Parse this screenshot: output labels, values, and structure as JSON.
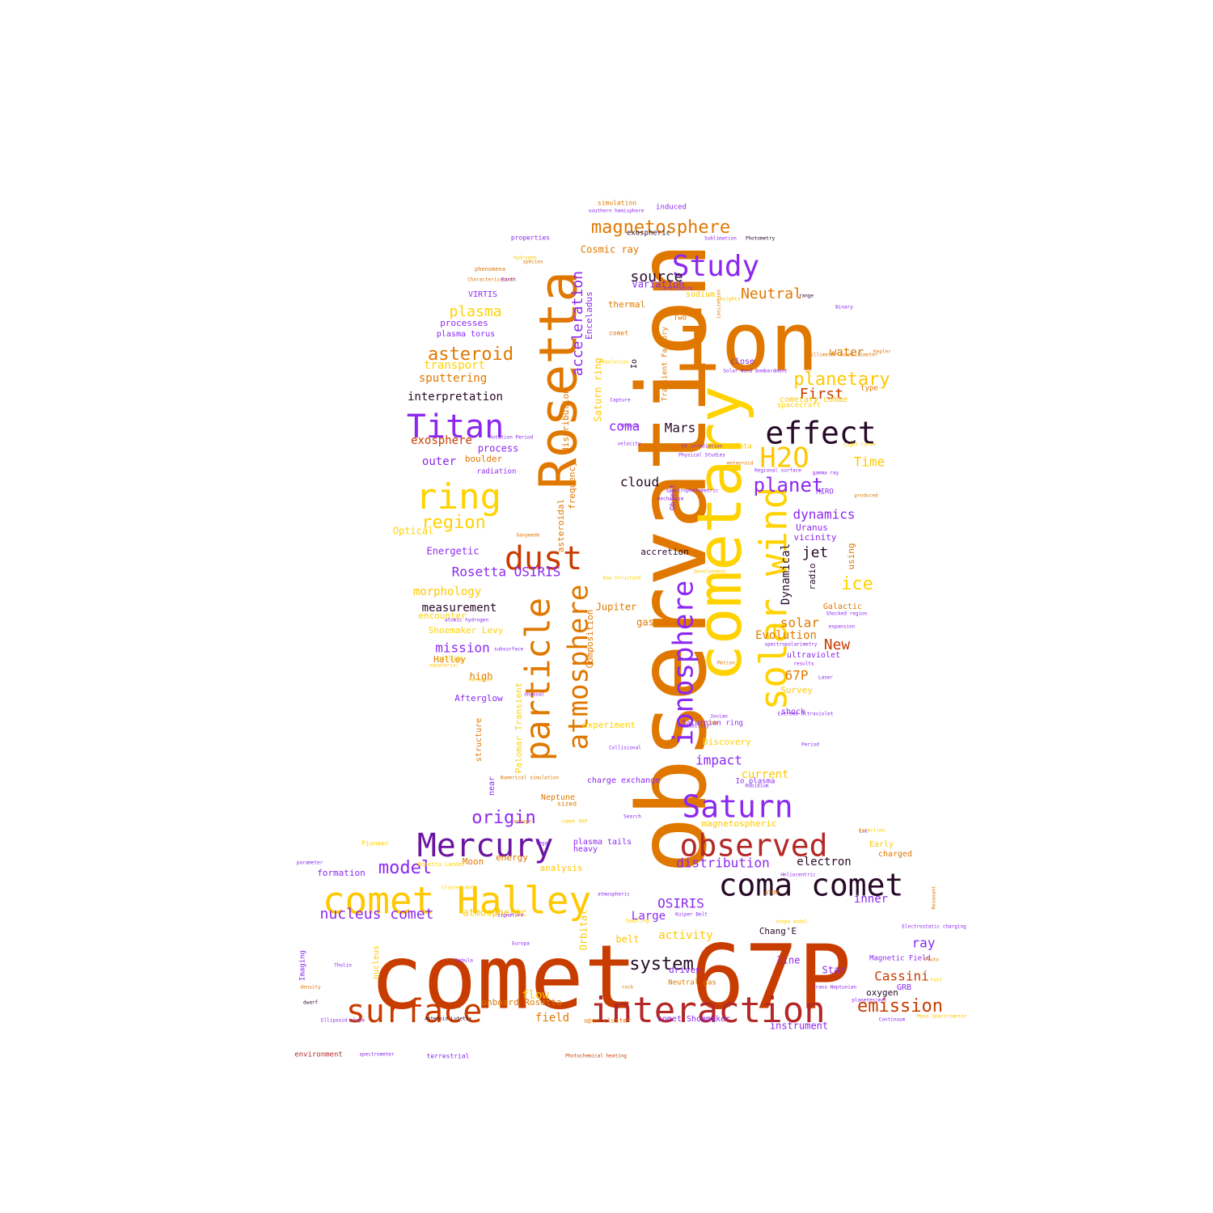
{
  "words": [
    {
      "text": "comet 67P",
      "color": "#c83c00"
    },
    {
      "text": "observation",
      "color": "#e07800"
    },
    {
      "text": "ion",
      "color": "#e07800"
    },
    {
      "text": "cometary",
      "color": "#ffd200"
    },
    {
      "text": "Rosetta",
      "color": "#e07800"
    },
    {
      "text": "interaction",
      "color": "#b42828"
    },
    {
      "text": "comet Halley",
      "color": "#ffc800"
    },
    {
      "text": "Mercury",
      "color": "#6a14a0"
    },
    {
      "text": "observed",
      "color": "#b42828"
    },
    {
      "text": "Saturn",
      "color": "#8c28f0"
    },
    {
      "text": "coma comet",
      "color": "#280a28"
    },
    {
      "text": "surface",
      "color": "#c83c00"
    },
    {
      "text": "effect",
      "color": "#280a28"
    },
    {
      "text": "solar wind",
      "color": "#ffd200"
    },
    {
      "text": "ring",
      "color": "#ffd200"
    },
    {
      "text": "particle",
      "color": "#e07800"
    },
    {
      "text": "atmosphere",
      "color": "#e07800"
    },
    {
      "text": "ionosphere",
      "color": "#8c28f0"
    },
    {
      "text": "dust",
      "color": "#c83c00"
    },
    {
      "text": "Titan",
      "color": "#8c28f0"
    },
    {
      "text": "Study",
      "color": "#8c28f0"
    },
    {
      "text": "H2O",
      "color": "#ffc800"
    },
    {
      "text": "magnetosphere",
      "color": "#e07800"
    },
    {
      "text": "planetary",
      "color": "#ffc800"
    },
    {
      "text": "asteroid",
      "color": "#e07800"
    },
    {
      "text": "planet",
      "color": "#8c28f0"
    },
    {
      "text": "region",
      "color": "#ffd200"
    },
    {
      "text": "origin",
      "color": "#8c28f0"
    },
    {
      "text": "emission",
      "color": "#c83c00"
    },
    {
      "text": "nucleus comet",
      "color": "#8c28f0"
    },
    {
      "text": "model",
      "color": "#8c28f0"
    },
    {
      "text": "system",
      "color": "#280a28"
    },
    {
      "text": "Neutral",
      "color": "#e07800"
    },
    {
      "text": "dynamics",
      "color": "#8c28f0"
    },
    {
      "text": "ice",
      "color": "#ffd200"
    },
    {
      "text": "First",
      "color": "#c83c00"
    },
    {
      "text": "source",
      "color": "#280a28"
    },
    {
      "text": "plasma",
      "color": "#ffd200"
    },
    {
      "text": "acceleration",
      "color": "#8c28f0"
    },
    {
      "text": "Rosetta OSIRIS",
      "color": "#8c28f0"
    },
    {
      "text": "distribution",
      "color": "#8c28f0"
    },
    {
      "text": "impact",
      "color": "#8c28f0"
    },
    {
      "text": "Cassini",
      "color": "#c83c00"
    },
    {
      "text": "OSIRIS",
      "color": "#8c28f0"
    },
    {
      "text": "electron",
      "color": "#280a28"
    },
    {
      "text": "mission",
      "color": "#8c28f0"
    },
    {
      "text": "coma",
      "color": "#8c28f0"
    },
    {
      "text": "Mars",
      "color": "#280a28"
    },
    {
      "text": "cloud",
      "color": "#280a28"
    },
    {
      "text": "jet",
      "color": "#280a28"
    },
    {
      "text": "water",
      "color": "#e07800"
    },
    {
      "text": "Time",
      "color": "#ffc800"
    },
    {
      "text": "sputtering",
      "color": "#e07800"
    },
    {
      "text": "transport",
      "color": "#ffd200"
    },
    {
      "text": "interpretation",
      "color": "#280a28"
    },
    {
      "text": "exosphere",
      "color": "#c83c00"
    },
    {
      "text": "outer",
      "color": "#8c28f0"
    },
    {
      "text": "solar",
      "color": "#e07800"
    },
    {
      "text": "New",
      "color": "#c83c00"
    },
    {
      "text": "67P",
      "color": "#e07800"
    },
    {
      "text": "Evolution",
      "color": "#e07800"
    },
    {
      "text": "Dynamical",
      "color": "#280a28"
    },
    {
      "text": "morphology",
      "color": "#ffc800"
    },
    {
      "text": "measurement",
      "color": "#280a28"
    },
    {
      "text": "Energetic",
      "color": "#8c28f0"
    },
    {
      "text": "Optical",
      "color": "#ffd200"
    },
    {
      "text": "current",
      "color": "#ffc800"
    },
    {
      "text": "ray",
      "color": "#8c28f0"
    },
    {
      "text": "inner",
      "color": "#8c28f0"
    },
    {
      "text": "instrument",
      "color": "#8c28f0"
    },
    {
      "text": "field",
      "color": "#e07800"
    },
    {
      "text": "flow",
      "color": "#ffc800"
    },
    {
      "text": "Large",
      "color": "#8c28f0"
    },
    {
      "text": "activity",
      "color": "#ffc800"
    },
    {
      "text": "Jupiter",
      "color": "#e07800"
    },
    {
      "text": "gas",
      "color": "#e07800"
    },
    {
      "text": "accretion",
      "color": "#280a28"
    },
    {
      "text": "Uranus",
      "color": "#8c28f0"
    },
    {
      "text": "vicinity",
      "color": "#8c28f0"
    },
    {
      "text": "radio",
      "color": "#280a28"
    },
    {
      "text": "using",
      "color": "#e07800"
    },
    {
      "text": "high",
      "color": "#e07800"
    },
    {
      "text": "Halley",
      "color": "#e07800"
    },
    {
      "text": "Afterglow",
      "color": "#8c28f0"
    },
    {
      "text": "encounter",
      "color": "#ffd200"
    },
    {
      "text": "Shoemaker Levy",
      "color": "#ffd200"
    },
    {
      "text": "process",
      "color": "#8c28f0"
    },
    {
      "text": "boulder",
      "color": "#e07800"
    },
    {
      "text": "radiation",
      "color": "#8c28f0"
    },
    {
      "text": "processes",
      "color": "#8c28f0"
    },
    {
      "text": "plasma torus",
      "color": "#8c28f0"
    },
    {
      "text": "VIRTIS",
      "color": "#8c28f0"
    },
    {
      "text": "Cosmic ray",
      "color": "#e07800"
    },
    {
      "text": "variation",
      "color": "#8c28f0"
    },
    {
      "text": "thermal",
      "color": "#e07800"
    },
    {
      "text": "Enceladus",
      "color": "#8c28f0"
    },
    {
      "text": "Saturn ring",
      "color": "#ffc800"
    },
    {
      "text": "distribution",
      "color": "#e07800"
    },
    {
      "text": "frequency",
      "color": "#e07800"
    },
    {
      "text": "asteroidal",
      "color": "#e07800"
    },
    {
      "text": "Composition",
      "color": "#e07800"
    },
    {
      "text": "Orbital",
      "color": "#ffc800"
    },
    {
      "text": "atmospheric",
      "color": "#ffc800"
    },
    {
      "text": "analysis",
      "color": "#ffc800"
    },
    {
      "text": "energy",
      "color": "#e07800"
    },
    {
      "text": "formation",
      "color": "#8c28f0"
    },
    {
      "text": "Moon",
      "color": "#e07800"
    },
    {
      "text": "plasma tails",
      "color": "#8c28f0"
    },
    {
      "text": "magnetospheric",
      "color": "#ffc800"
    },
    {
      "text": "charge exchange",
      "color": "#8c28f0"
    },
    {
      "text": "Neptune",
      "color": "#e07800"
    },
    {
      "text": "Discovery",
      "color": "#ffd200"
    },
    {
      "text": "experiment",
      "color": "#ffd200"
    },
    {
      "text": "Survey",
      "color": "#ffc800"
    },
    {
      "text": "shock",
      "color": "#8c28f0"
    },
    {
      "text": "ultraviolet",
      "color": "#8c28f0"
    },
    {
      "text": "Galactic",
      "color": "#e07800"
    },
    {
      "text": "charged",
      "color": "#e07800"
    },
    {
      "text": "Early",
      "color": "#ffc800"
    },
    {
      "text": "Chang'E",
      "color": "#280a28"
    },
    {
      "text": "belt",
      "color": "#ffc800"
    },
    {
      "text": "driven",
      "color": "#8c28f0"
    },
    {
      "text": "line",
      "color": "#8c28f0"
    },
    {
      "text": "Star",
      "color": "#8c28f0"
    },
    {
      "text": "oxygen",
      "color": "#280a28"
    },
    {
      "text": "GRB",
      "color": "#8c28f0"
    },
    {
      "text": "Magnetic Field",
      "color": "#8c28f0"
    },
    {
      "text": "onboard Rosetta",
      "color": "#e07800"
    },
    {
      "text": "comet Shoemaker",
      "color": "#8c28f0"
    },
    {
      "text": "Neutral gas",
      "color": "#e07800"
    },
    {
      "text": "upen cluster",
      "color": "#e07800"
    },
    {
      "text": "structure",
      "color": "#e07800"
    },
    {
      "text": "near",
      "color": "#8c28f0"
    },
    {
      "text": "Palomar Transient",
      "color": "#ffd200"
    },
    {
      "text": "Imaging",
      "color": "#8c28f0"
    },
    {
      "text": "nucleus",
      "color": "#ffc800"
    },
    {
      "text": "Pioneer",
      "color": "#ffd200"
    },
    {
      "text": "environment",
      "color": "#b42828"
    },
    {
      "text": "terrestrial",
      "color": "#8c28f0"
    },
    {
      "text": "Transient Factory",
      "color": "#e07800"
    },
    {
      "text": "induced",
      "color": "#8c28f0"
    },
    {
      "text": "exospheric",
      "color": "#280a28"
    },
    {
      "text": "simulation",
      "color": "#e07800"
    },
    {
      "text": "properties",
      "color": "#8c28f0"
    },
    {
      "text": "phenomena",
      "color": "#e07800"
    },
    {
      "text": "Two",
      "color": "#e07800"
    },
    {
      "text": "close",
      "color": "#8c28f0"
    },
    {
      "text": "spacecraft",
      "color": "#ffd200"
    },
    {
      "text": "cometary comae",
      "color": "#ffc800"
    },
    {
      "text": "type",
      "color": "#e07800"
    },
    {
      "text": "Io plasma",
      "color": "#8c28f0"
    },
    {
      "text": "Saturnian ring",
      "color": "#8c28f0"
    },
    {
      "text": "sodium",
      "color": "#ffc800"
    },
    {
      "text": "Io",
      "color": "#280a28"
    },
    {
      "text": "comet",
      "color": "#e07800"
    },
    {
      "text": "data",
      "color": "#ffc800"
    },
    {
      "text": "Object",
      "color": "#8c28f0"
    },
    {
      "text": "MIRO",
      "color": "#8c28f0"
    },
    {
      "text": "sized",
      "color": "#e07800"
    },
    {
      "text": "Photochemical heating",
      "color": "#c83c00"
    },
    {
      "text": "spectrometer",
      "color": "#8c28f0"
    },
    {
      "text": "southern hemisphere",
      "color": "#8c28f0"
    },
    {
      "text": "Characterization",
      "color": "#e07800"
    },
    {
      "text": "hydrogen",
      "color": "#ffc800"
    },
    {
      "text": "species",
      "color": "#e07800"
    },
    {
      "text": "Photometry",
      "color": "#280a28"
    },
    {
      "text": "Binary",
      "color": "#8c28f0"
    },
    {
      "text": "millimeter submillimeter",
      "color": "#e07800"
    },
    {
      "text": "Kepler",
      "color": "#e07800"
    },
    {
      "text": "Light Curve",
      "color": "#ffd200"
    },
    {
      "text": "produced",
      "color": "#e07800"
    },
    {
      "text": "Ganymede",
      "color": "#e07800"
    },
    {
      "text": "mechanism",
      "color": "#8c28f0"
    },
    {
      "text": "spectrophotometric",
      "color": "#8c28f0"
    },
    {
      "text": "UV irradiation",
      "color": "#8c28f0"
    },
    {
      "text": "Physical Studies",
      "color": "#8c28f0"
    },
    {
      "text": "velocity",
      "color": "#8c28f0"
    },
    {
      "text": "Rotation Period",
      "color": "#8c28f0"
    },
    {
      "text": "atomic hydrogen",
      "color": "#8c28f0"
    },
    {
      "text": "subsurface",
      "color": "#8c28f0"
    },
    {
      "text": "satellite",
      "color": "#ffd200"
    },
    {
      "text": "Variable",
      "color": "#ffc800"
    },
    {
      "text": "Unusual",
      "color": "#8c28f0"
    },
    {
      "text": "Flyby",
      "color": "#ffc800"
    },
    {
      "text": "equatorial",
      "color": "#ffc800"
    },
    {
      "text": "Motion",
      "color": "#e07800"
    },
    {
      "text": "results",
      "color": "#8c28f0"
    },
    {
      "text": "Extreme Ultraviolet",
      "color": "#8c28f0"
    },
    {
      "text": "Laser",
      "color": "#8c28f0"
    },
    {
      "text": "Period",
      "color": "#8c28f0"
    },
    {
      "text": "Detection",
      "color": "#ffc800"
    },
    {
      "text": "Resonant",
      "color": "#e07800"
    },
    {
      "text": "Electrostatic charging",
      "color": "#8c28f0"
    },
    {
      "text": "Trans Neptunian",
      "color": "#8c28f0"
    },
    {
      "text": "Continuum",
      "color": "#8c28f0"
    },
    {
      "text": "Mass Spectrometer",
      "color": "#ffc800"
    },
    {
      "text": "ATOM",
      "color": "#e07800"
    },
    {
      "text": "Heliocentric",
      "color": "#8c28f0"
    },
    {
      "text": "shape model",
      "color": "#ffd200"
    },
    {
      "text": "atmospheric",
      "color": "#8c28f0"
    },
    {
      "text": "Kuiper Belt",
      "color": "#8c28f0"
    },
    {
      "text": "Ellipsoid shape",
      "color": "#8c28f0"
    },
    {
      "text": "parameter",
      "color": "#8c28f0"
    },
    {
      "text": "Cluster NGC",
      "color": "#ffd200"
    },
    {
      "text": "Nebula",
      "color": "#8c28f0"
    },
    {
      "text": "Europa",
      "color": "#8c28f0"
    },
    {
      "text": "signature",
      "color": "#8c28f0"
    },
    {
      "text": "density",
      "color": "#e07800"
    },
    {
      "text": "dwarf",
      "color": "#280a28"
    },
    {
      "text": "Asteroid Lutetia",
      "color": "#280a28"
    },
    {
      "text": "Phobos",
      "color": "#8c28f0"
    },
    {
      "text": "Sublimation",
      "color": "#8c28f0"
    },
    {
      "text": "Insights",
      "color": "#ffc800"
    },
    {
      "text": "Solar Wind Bombardment",
      "color": "#8c28f0"
    },
    {
      "text": "range",
      "color": "#280a28"
    },
    {
      "text": "ionization",
      "color": "#e07800"
    },
    {
      "text": "Constraints",
      "color": "#8c28f0"
    },
    {
      "text": "Earth",
      "color": "#8c28f0"
    },
    {
      "text": "meteoroid",
      "color": "#e07800"
    },
    {
      "text": "gamma ray",
      "color": "#8c28f0"
    },
    {
      "text": "Regional surface",
      "color": "#8c28f0"
    },
    {
      "text": "Development",
      "color": "#ffc800"
    },
    {
      "text": "Bow Structure",
      "color": "#ffd200"
    },
    {
      "text": "Shocked region",
      "color": "#8c28f0"
    },
    {
      "text": "expansion",
      "color": "#8c28f0"
    },
    {
      "text": "spectropolarimetry",
      "color": "#8c28f0"
    },
    {
      "text": "Jovian",
      "color": "#8c28f0"
    },
    {
      "text": "Coma",
      "color": "#e07800"
    },
    {
      "text": "Collisional",
      "color": "#8c28f0"
    },
    {
      "text": "variability",
      "color": "#8c28f0"
    },
    {
      "text": "Rubidium",
      "color": "#8c28f0"
    },
    {
      "text": "Numerical simulation",
      "color": "#e07800"
    },
    {
      "text": "arouge",
      "color": "#e07800"
    },
    {
      "text": "comet 90P",
      "color": "#ffc800"
    },
    {
      "text": "Vega",
      "color": "#8c28f0"
    },
    {
      "text": "heavy",
      "color": "#8c28f0"
    },
    {
      "text": "Search",
      "color": "#8c28f0"
    },
    {
      "text": "Luc",
      "color": "#8c28f0"
    },
    {
      "text": "planetesimal",
      "color": "#8c28f0"
    },
    {
      "text": "Fast",
      "color": "#ffd200"
    },
    {
      "text": "Rosetta Lander",
      "color": "#ffd200"
    },
    {
      "text": "Tholin",
      "color": "#8c28f0"
    },
    {
      "text": "Pluto",
      "color": "#e07800"
    },
    {
      "text": "rock",
      "color": "#e07800"
    },
    {
      "text": "Sampling",
      "color": "#ffd200"
    },
    {
      "text": "Resolution",
      "color": "#ffd200"
    },
    {
      "text": "Capture",
      "color": "#8c28f0"
    }
  ]
}
